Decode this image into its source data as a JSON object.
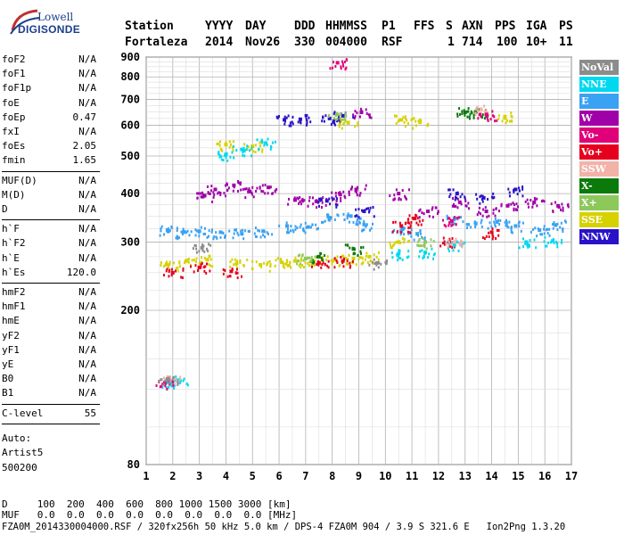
{
  "logo": {
    "line1": "Lowell",
    "line2": "DIGISONDE"
  },
  "header": {
    "cols": [
      "Station",
      "YYYY",
      "DAY",
      "DDD",
      "HHMMSS",
      "P1",
      "FFS",
      "S",
      "AXN",
      "PPS",
      "IGA",
      "PS"
    ],
    "vals": [
      "Fortaleza",
      "2014",
      "Nov26",
      "330",
      "004000",
      "RSF",
      "1",
      "714",
      "100",
      "10+",
      "11"
    ]
  },
  "sidebar": {
    "group1": [
      {
        "k": "foF2",
        "v": "N/A"
      },
      {
        "k": "foF1",
        "v": "N/A"
      },
      {
        "k": "foF1p",
        "v": "N/A"
      },
      {
        "k": "foE",
        "v": "N/A"
      },
      {
        "k": "foEp",
        "v": "0.47"
      },
      {
        "k": "fxI",
        "v": "N/A"
      },
      {
        "k": "foEs",
        "v": "2.05"
      },
      {
        "k": "fmin",
        "v": "1.65"
      }
    ],
    "group2": [
      {
        "k": "MUF(D)",
        "v": "N/A"
      },
      {
        "k": "M(D)",
        "v": "N/A"
      },
      {
        "k": "D",
        "v": "N/A"
      }
    ],
    "group3": [
      {
        "k": "h`F",
        "v": "N/A"
      },
      {
        "k": "h`F2",
        "v": "N/A"
      },
      {
        "k": "h`E",
        "v": "N/A"
      },
      {
        "k": "h`Es",
        "v": "120.0"
      }
    ],
    "group4": [
      {
        "k": "hmF2",
        "v": "N/A"
      },
      {
        "k": "hmF1",
        "v": "N/A"
      },
      {
        "k": "hmE",
        "v": "N/A"
      },
      {
        "k": "yF2",
        "v": "N/A"
      },
      {
        "k": "yF1",
        "v": "N/A"
      },
      {
        "k": "yE",
        "v": "N/A"
      },
      {
        "k": "B0",
        "v": "N/A"
      },
      {
        "k": "B1",
        "v": "N/A"
      }
    ],
    "group5": [
      {
        "k": "C-level",
        "v": "55"
      }
    ],
    "auto": [
      "Auto:",
      "Artist5",
      "500200"
    ]
  },
  "bottom": {
    "d_line": "D     100  200  400  600  800 1000 1500 3000 [km]",
    "muf_line": "MUF   0.0  0.0  0.0  0.0  0.0  0.0  0.0  0.0 [MHz]",
    "footer": "FZA0M_2014330004000.RSF / 320fx256h 50 kHz 5.0 km / DPS-4 FZA0M 904 / 3.9 S 321.6 E   Ion2Png 1.3.20"
  },
  "legend": [
    {
      "label": "NoVal",
      "color": "#8c8c8c"
    },
    {
      "label": "NNE",
      "color": "#00d8f0"
    },
    {
      "label": "E",
      "color": "#3aa2f2"
    },
    {
      "label": "W",
      "color": "#a000a8"
    },
    {
      "label": "Vo-",
      "color": "#e0007a"
    },
    {
      "label": "Vo+",
      "color": "#e6001e"
    },
    {
      "label": "SSW",
      "color": "#f2b2a8"
    },
    {
      "label": "X-",
      "color": "#0a7a0a"
    },
    {
      "label": "X+",
      "color": "#8cc85a"
    },
    {
      "label": "SSE",
      "color": "#d6d200"
    },
    {
      "label": "NNW",
      "color": "#2a12c8"
    }
  ],
  "chart_data": {
    "type": "scatter",
    "xlim": [
      1,
      17
    ],
    "ylim": [
      80,
      900
    ],
    "y_scale": "log",
    "x_ticks": [
      1,
      2,
      3,
      4,
      5,
      6,
      7,
      8,
      9,
      10,
      11,
      12,
      13,
      14,
      15,
      16,
      17
    ],
    "y_ticks": [
      80,
      200,
      300,
      400,
      500,
      600,
      700,
      800,
      900
    ],
    "grid": true,
    "series": [
      {
        "name": "E",
        "points": [
          [
            1.8,
            322
          ],
          [
            2.4,
            318
          ],
          [
            3.0,
            320
          ],
          [
            3.8,
            318
          ],
          [
            4.6,
            315
          ],
          [
            5.4,
            320
          ],
          [
            6.3,
            330
          ],
          [
            7.1,
            328
          ],
          [
            7.9,
            345
          ],
          [
            8.7,
            350
          ],
          [
            9.2,
            333
          ],
          [
            10.6,
            320
          ],
          [
            11.2,
            315
          ],
          [
            12.6,
            345
          ],
          [
            13.4,
            335
          ],
          [
            14.2,
            338
          ],
          [
            14.9,
            330
          ],
          [
            15.8,
            322
          ],
          [
            16.4,
            332
          ]
        ]
      },
      {
        "name": "W",
        "points": [
          [
            3.2,
            395
          ],
          [
            3.6,
            410
          ],
          [
            4.3,
            420
          ],
          [
            4.9,
            405
          ],
          [
            5.6,
            415
          ],
          [
            6.6,
            385
          ],
          [
            7.4,
            382
          ],
          [
            8.3,
            398
          ],
          [
            8.9,
            410
          ],
          [
            9.1,
            648
          ],
          [
            10.5,
            400
          ],
          [
            11.6,
            360
          ],
          [
            12.8,
            380
          ],
          [
            13.8,
            360
          ],
          [
            14.6,
            372
          ],
          [
            15.6,
            380
          ],
          [
            16.5,
            372
          ]
        ]
      },
      {
        "name": "NNW",
        "points": [
          [
            6.2,
            620
          ],
          [
            6.8,
            622
          ],
          [
            7.9,
            625
          ],
          [
            8.4,
            635
          ],
          [
            7.8,
            383
          ],
          [
            9.2,
            360
          ],
          [
            12.7,
            400
          ],
          [
            13.7,
            390
          ],
          [
            14.9,
            410
          ]
        ]
      },
      {
        "name": "SSE",
        "points": [
          [
            1.8,
            262
          ],
          [
            2.5,
            268
          ],
          [
            3.3,
            270
          ],
          [
            4.4,
            264
          ],
          [
            5.3,
            262
          ],
          [
            6.1,
            266
          ],
          [
            6.6,
            268
          ],
          [
            7.3,
            268
          ],
          [
            8.1,
            270
          ],
          [
            8.8,
            272
          ],
          [
            9.4,
            275
          ],
          [
            4.0,
            535
          ],
          [
            5.0,
            530
          ],
          [
            10.6,
            620
          ],
          [
            11.3,
            612
          ],
          [
            14.5,
            632
          ],
          [
            8.6,
            610
          ],
          [
            10.5,
            300
          ]
        ]
      },
      {
        "name": "Vo+",
        "points": [
          [
            2.0,
            250
          ],
          [
            3.0,
            258
          ],
          [
            4.2,
            252
          ],
          [
            7.5,
            265
          ],
          [
            8.4,
            268
          ],
          [
            10.6,
            330
          ],
          [
            11.1,
            345
          ],
          [
            12.4,
            300
          ],
          [
            14.0,
            318
          ]
        ]
      },
      {
        "name": "NNE",
        "points": [
          [
            1.9,
            131
          ],
          [
            2.2,
            132
          ],
          [
            4.0,
            505
          ],
          [
            4.6,
            520
          ],
          [
            5.5,
            540
          ],
          [
            10.5,
            280
          ],
          [
            11.5,
            282
          ],
          [
            12.6,
            295
          ],
          [
            15.3,
            300
          ],
          [
            16.3,
            302
          ]
        ]
      },
      {
        "name": "X-",
        "points": [
          [
            7.5,
            275
          ],
          [
            8.8,
            288
          ],
          [
            13.4,
            650
          ],
          [
            13.0,
            648
          ]
        ]
      },
      {
        "name": "X+",
        "points": [
          [
            7.0,
            272
          ],
          [
            8.2,
            640
          ],
          [
            11.5,
            300
          ]
        ]
      },
      {
        "name": "SSW",
        "points": [
          [
            1.9,
            132
          ],
          [
            12.6,
            300
          ],
          [
            13.6,
            660
          ]
        ]
      },
      {
        "name": "Vo-",
        "points": [
          [
            1.7,
            130
          ],
          [
            8.2,
            870
          ],
          [
            13.8,
            640
          ],
          [
            12.5,
            340
          ]
        ]
      },
      {
        "name": "NoVal",
        "points": [
          [
            1.8,
            133
          ],
          [
            3.1,
            290
          ],
          [
            9.7,
            265
          ]
        ]
      }
    ]
  }
}
